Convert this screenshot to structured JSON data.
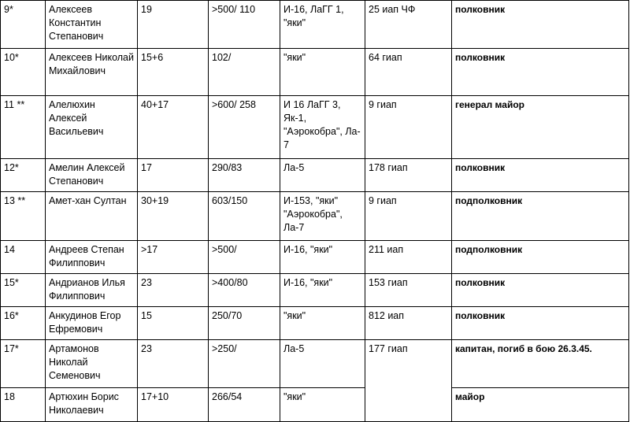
{
  "rows": [
    {
      "num": "9*",
      "name": "Алексеев Константин Степанович",
      "victories": "19",
      "sorties": ">500/ 110",
      "aircraft": "И-16, ЛаГГ 1, \"яки\"",
      "regiment": "25 иап ЧФ",
      "rank": "полковник"
    },
    {
      "num": "10*",
      "name": "Алексеев Николай Михайлович",
      "victories": "15+6",
      "sorties": "102/",
      "aircraft": "\"яки\"",
      "regiment": "64 гиап",
      "rank": "полковник"
    },
    {
      "num": "11 **",
      "name": "Алелюхин Алексей Васильевич",
      "victories": "40+17",
      "sorties": ">600/ 258",
      "aircraft": "И 16 ЛаГГ 3, Як-1, \"Аэрокобра\", Ла- 7",
      "regiment": "9 гиап",
      "rank": "генерал майор"
    },
    {
      "num": "12*",
      "name": "Амелин Алексей Степанович",
      "victories": "17",
      "sorties": "290/83",
      "aircraft": "Ла-5",
      "regiment": "178 гиап",
      "rank": "полковник"
    },
    {
      "num": "13 **",
      "name": "Амет-хан Султан",
      "victories": "30+19",
      "sorties": "603/150",
      "aircraft": "И-153, \"яки\" \"Аэрокобра\", Ла-7",
      "regiment": "9 гиап",
      "rank": "подполковник"
    },
    {
      "num": "14",
      "name": "Андреев Степан Филиппович",
      "victories": ">17",
      "sorties": ">500/",
      "aircraft": "И-16, \"яки\"",
      "regiment": "211 иап",
      "rank": "подполковник"
    },
    {
      "num": "15*",
      "name": "Андрианов Илья Филиппович",
      "victories": "23",
      "sorties": ">400/80",
      "aircraft": "И-16, \"яки\"",
      "regiment": "153 гиап",
      "rank": "полковник"
    },
    {
      "num": "16*",
      "name": "Анкудинов Егор Ефремович",
      "victories": "15",
      "sorties": "250/70",
      "aircraft": "\"яки\"",
      "regiment": "812 иап",
      "rank": "полковник"
    },
    {
      "num": "17*",
      "name": "Артамонов Николай Семенович",
      "victories": "23",
      "sorties": ">250/",
      "aircraft": "Ла-5",
      "regiment": "177 гиап",
      "rank": "капитан, погиб в бою 26.3.45."
    },
    {
      "num": "18",
      "name": "Артюхин Борис Николаевич",
      "victories": "17+10",
      "sorties": "266/54",
      "aircraft": "\"яки\"",
      "regiment": "",
      "rank": "майор"
    }
  ]
}
